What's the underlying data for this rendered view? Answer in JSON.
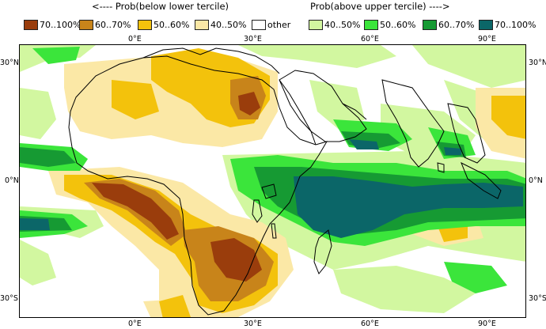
{
  "header": {
    "left": "<---- Prob(below lower tercile)",
    "right": "Prob(above upper tercile) ---->"
  },
  "legend": [
    {
      "label": "70..100%",
      "color": "#9a3d0c"
    },
    {
      "label": "60..70%",
      "color": "#c8841a"
    },
    {
      "label": "50..60%",
      "color": "#f3c20c"
    },
    {
      "label": "40..50%",
      "color": "#fbe8a6"
    },
    {
      "label": "other",
      "color": "#ffffff"
    },
    {
      "label": "40..50%",
      "color": "#d2f7a0"
    },
    {
      "label": "50..60%",
      "color": "#3be53b"
    },
    {
      "label": "60..70%",
      "color": "#169a33"
    },
    {
      "label": "70..100%",
      "color": "#0b6668"
    }
  ],
  "axes": {
    "lon_labels": [
      "0°E",
      "30°E",
      "60°E",
      "90°E"
    ],
    "lat_labels": [
      "30°N",
      "0°N",
      "30°S"
    ]
  }
}
